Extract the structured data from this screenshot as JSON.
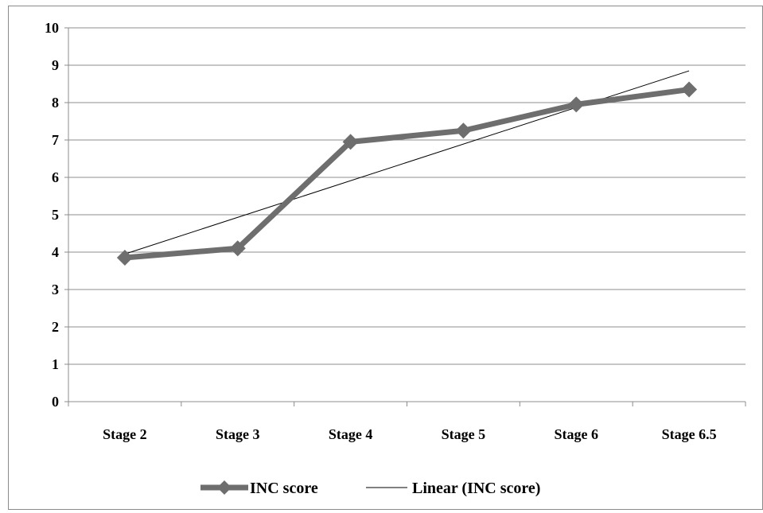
{
  "chart_data": {
    "type": "line",
    "title": "",
    "xlabel": "",
    "ylabel": "",
    "categories": [
      "Stage 2",
      "Stage 3",
      "Stage 4",
      "Stage 5",
      "Stage 6",
      "Stage 6.5"
    ],
    "ylim": [
      0,
      10
    ],
    "yticks": [
      "0",
      "1",
      "2",
      "3",
      "4",
      "5",
      "6",
      "7",
      "8",
      "9",
      "10"
    ],
    "grid": true,
    "legend_position": "bottom",
    "series": [
      {
        "name": "INC score",
        "values": [
          3.85,
          4.1,
          6.95,
          7.25,
          7.95,
          8.35
        ],
        "color": "#6e6e6e",
        "marker": "diamond"
      }
    ],
    "trendline": {
      "name": "Linear (INC score)",
      "kind": "linear",
      "start_value": 3.95,
      "end_value": 8.85,
      "color": "#000000"
    }
  }
}
